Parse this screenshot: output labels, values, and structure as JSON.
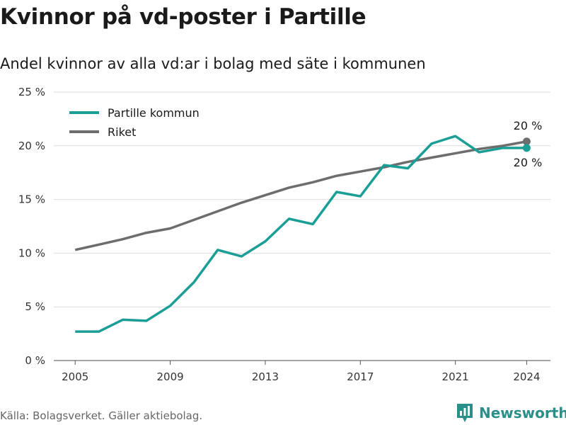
{
  "title": "Kvinnor på vd-poster i Partille",
  "subtitle": "Andel kvinnor av alla vd:ar i bolag med säte i kommunen",
  "source": "Källa: Bolagsverket. Gäller aktiebolag.",
  "brand": "Newsworthy",
  "colors": {
    "partille": "#1a9e96",
    "riket": "#6d6d6d",
    "grid": "#dddddd"
  },
  "chart_data": {
    "type": "line",
    "x": [
      2005,
      2006,
      2007,
      2008,
      2009,
      2010,
      2011,
      2012,
      2013,
      2014,
      2015,
      2016,
      2017,
      2018,
      2019,
      2020,
      2021,
      2022,
      2023,
      2024
    ],
    "series": [
      {
        "name": "Partille kommun",
        "values": [
          2.7,
          2.7,
          3.8,
          3.7,
          5.1,
          7.3,
          10.3,
          9.7,
          11.1,
          13.2,
          12.7,
          15.7,
          15.3,
          18.2,
          17.9,
          20.2,
          20.9,
          19.4,
          19.8,
          19.8
        ]
      },
      {
        "name": "Riket",
        "values": [
          10.3,
          10.8,
          11.3,
          11.9,
          12.3,
          13.1,
          13.9,
          14.7,
          15.4,
          16.1,
          16.6,
          17.2,
          17.6,
          18.0,
          18.5,
          18.9,
          19.3,
          19.7,
          20.0,
          20.4
        ]
      }
    ],
    "xticks": [
      2005,
      2009,
      2013,
      2017,
      2021,
      2024
    ],
    "yticks": [
      0,
      5,
      10,
      15,
      20,
      25
    ],
    "ytick_labels": [
      "0 %",
      "5 %",
      "10 %",
      "15 %",
      "20 %",
      "25 %"
    ],
    "ylim": [
      0,
      25
    ],
    "xlim": [
      2004.1,
      2025.0
    ],
    "end_labels": {
      "partille": "20 %",
      "riket": "20 %"
    },
    "legend_position": "top-left",
    "grid": true,
    "xlabel": "",
    "ylabel": ""
  }
}
